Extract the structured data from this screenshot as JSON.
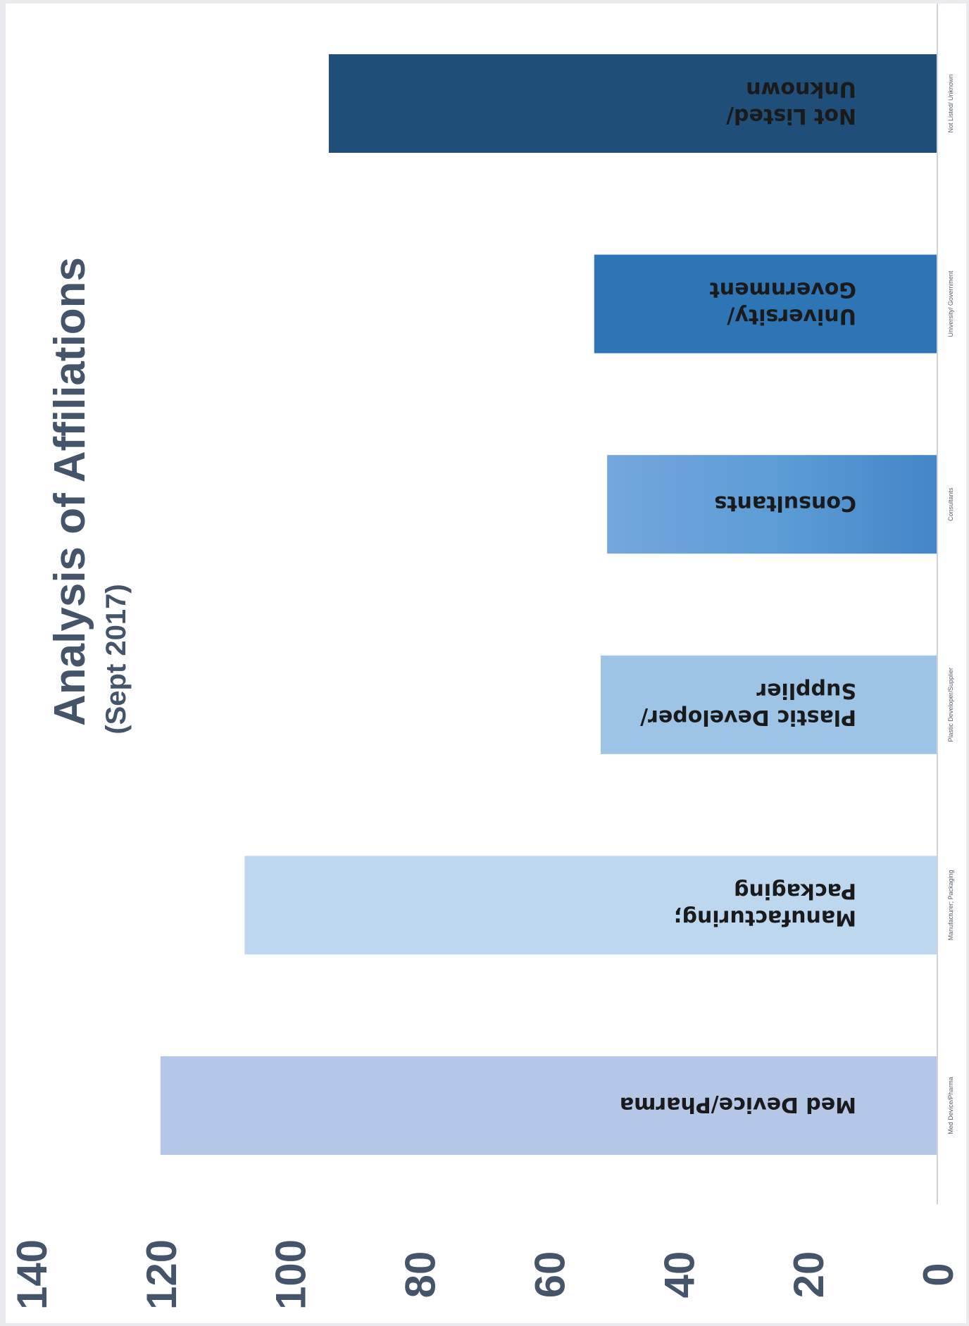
{
  "chart_data": {
    "type": "bar",
    "title": "Analysis of Affiliations",
    "subtitle": "(Sept 2017)",
    "categories": [
      "Med Device/Pharma",
      "Manufacturing; Packaging",
      "Plastic Developer/ Supplier",
      "Consultants",
      "University/ Government",
      "Not Listed/ Unknown"
    ],
    "bar_labels": [
      [
        "Med Device/Pharma"
      ],
      [
        "Manufacturing;",
        "Packaging"
      ],
      [
        "Plastic Developer/",
        "Supplier"
      ],
      [
        "Consultants"
      ],
      [
        "University/",
        "Government"
      ],
      [
        "Not Listed/",
        "Unknown"
      ]
    ],
    "small_labels": [
      "Med Device/Pharma",
      "Manufacturer; Packaging",
      "Plastic Developer/Supplier",
      "Consultants",
      "University/ Government",
      "Not Listed/ Unknown"
    ],
    "values": [
      120,
      107,
      52,
      51,
      53,
      94
    ],
    "colors": [
      "#b4c7e7",
      "#bdd7ee",
      "#9dc3e6",
      "#5b9bd5",
      "#2e75b6",
      "#1f4e79"
    ],
    "ylim": [
      0,
      140
    ],
    "ticks": [
      0,
      20,
      40,
      60,
      80,
      100,
      120,
      140
    ],
    "orientation": "rotated-90",
    "grid": false,
    "legend": "none"
  }
}
